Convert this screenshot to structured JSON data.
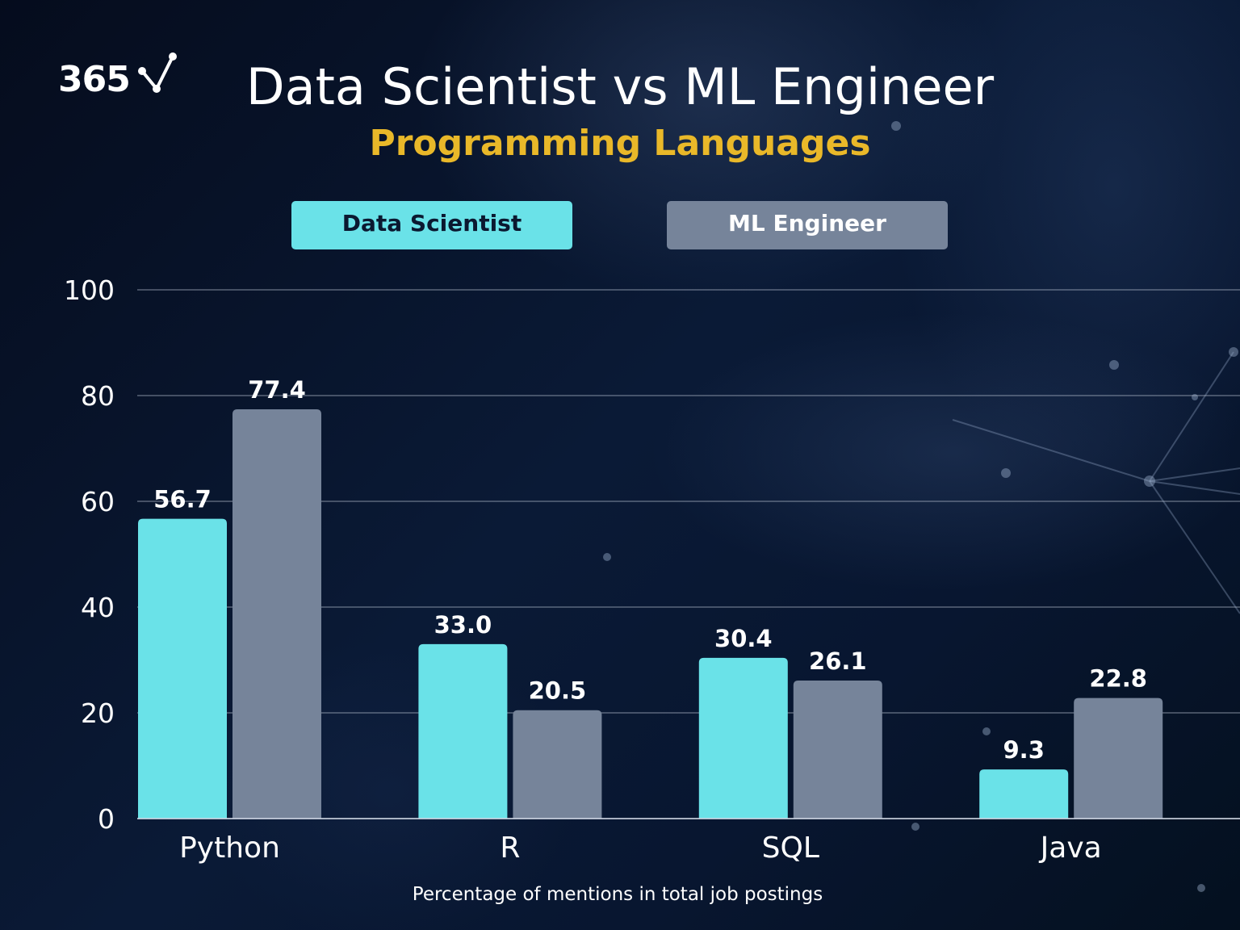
{
  "logo": {
    "text": "365"
  },
  "header": {
    "title": "Data Scientist vs ML Engineer",
    "subtitle": "Programming Languages"
  },
  "legend": [
    {
      "label": "Data Scientist",
      "color": "#6ae2e8"
    },
    {
      "label": "ML Engineer",
      "color": "#76849a"
    }
  ],
  "footnote": "Percentage of mentions in total job postings",
  "chart_data": {
    "type": "bar",
    "categories": [
      "Python",
      "R",
      "SQL",
      "Java"
    ],
    "series": [
      {
        "name": "Data Scientist",
        "values": [
          56.7,
          33.0,
          30.4,
          9.3
        ],
        "labels": [
          "56.7",
          "33.0",
          "30.4",
          "9.3"
        ],
        "color": "#6ae2e8"
      },
      {
        "name": "ML Engineer",
        "values": [
          77.4,
          20.5,
          26.1,
          22.8
        ],
        "labels": [
          "77.4",
          "20.5",
          "26.1",
          "22.8"
        ],
        "color": "#76849a"
      }
    ],
    "ylim": [
      0,
      100
    ],
    "yticks": [
      0,
      20,
      40,
      60,
      80,
      100
    ],
    "xlabel": "Percentage of mentions in total job postings",
    "ylabel": "",
    "grid": true,
    "legend_position": "top"
  }
}
